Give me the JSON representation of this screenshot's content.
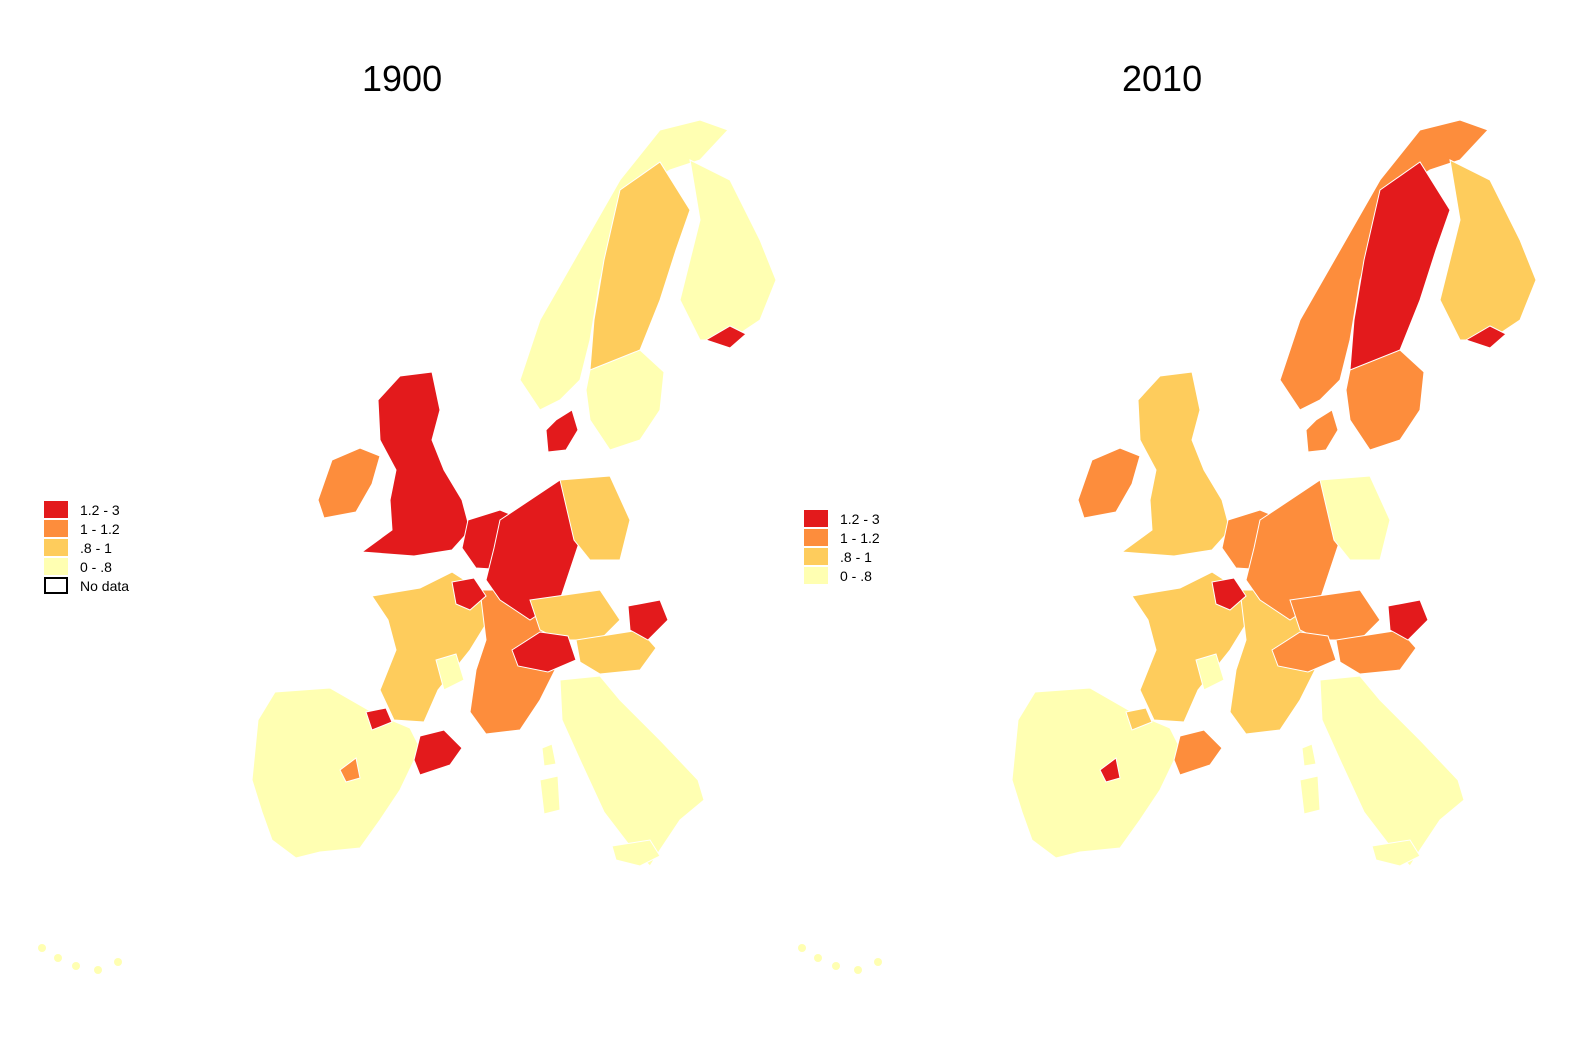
{
  "colors": {
    "c1": "#e31a1c",
    "c2": "#fd8d3c",
    "c3": "#fecc5c",
    "c4": "#ffffb2",
    "nodata": "#ffffff",
    "border": "#ffffff"
  },
  "panels": [
    {
      "title": "1900",
      "legend": [
        {
          "label": "1.2 - 3",
          "color": "c1"
        },
        {
          "label": "1 - 1.2",
          "color": "c2"
        },
        {
          "label": ".8 - 1",
          "color": "c3"
        },
        {
          "label": "0 - .8",
          "color": "c4"
        },
        {
          "label": "No data",
          "color": "nodata"
        }
      ],
      "regions": {
        "iberia": "c4",
        "basque": "c1",
        "catalonia": "c1",
        "madrid": "c2",
        "france_west": "c3",
        "france_east": "c2",
        "france_paris": "c1",
        "france_center": "c4",
        "ireland": "c2",
        "britain": "c1",
        "benelux": "c1",
        "germany_west": "c1",
        "germany_east": "c3",
        "germany_south": "c3",
        "switzerland": "c1",
        "austria": "c3",
        "bohemia": "c1",
        "italy": "c4",
        "denmark": "c1",
        "norway": "c4",
        "sweden_north": "c3",
        "sweden_south": "c4",
        "finland": "c4",
        "helsinki": "c1",
        "sardinia": "c4",
        "corsica": "c4",
        "sicily": "c4"
      }
    },
    {
      "title": "2010",
      "legend": [
        {
          "label": "1.2 - 3",
          "color": "c1"
        },
        {
          "label": "1 - 1.2",
          "color": "c2"
        },
        {
          "label": ".8 - 1",
          "color": "c3"
        },
        {
          "label": "0 - .8",
          "color": "c4"
        }
      ],
      "regions": {
        "iberia": "c4",
        "basque": "c3",
        "catalonia": "c2",
        "madrid": "c1",
        "france_west": "c3",
        "france_east": "c3",
        "france_paris": "c1",
        "france_center": "c4",
        "ireland": "c2",
        "britain": "c3",
        "benelux": "c2",
        "germany_west": "c2",
        "germany_east": "c4",
        "germany_south": "c2",
        "switzerland": "c2",
        "austria": "c2",
        "bohemia": "c1",
        "italy": "c4",
        "denmark": "c2",
        "norway": "c2",
        "sweden_north": "c1",
        "sweden_south": "c2",
        "finland": "c3",
        "helsinki": "c1",
        "sardinia": "c4",
        "corsica": "c4",
        "sicily": "c4"
      }
    }
  ]
}
